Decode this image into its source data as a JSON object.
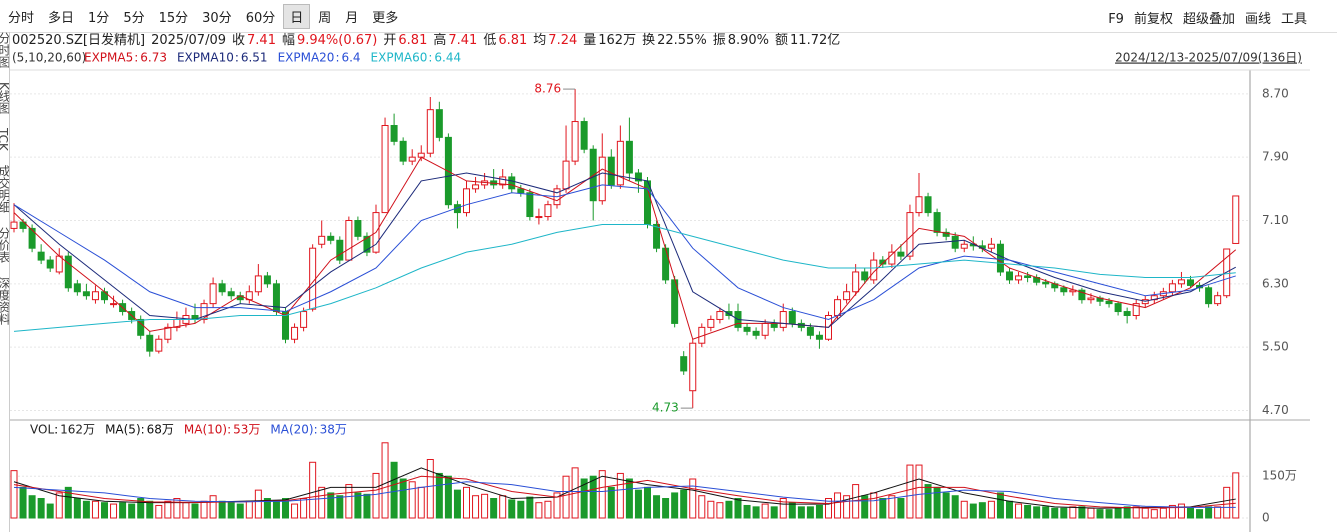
{
  "toolbar": {
    "tabs": [
      "分时",
      "多日",
      "1分",
      "5分",
      "15分",
      "30分",
      "60分",
      "日",
      "周",
      "月",
      "更多"
    ],
    "active_tab": "日",
    "right": [
      "F9",
      "前复权",
      "超级叠加",
      "画线",
      "工具"
    ]
  },
  "sidebar": [
    "分时图",
    "K线图",
    "TCK",
    "成交明细",
    "分价表",
    "深度资料"
  ],
  "info": {
    "code": "002520.SZ[日发精机]",
    "date": "2025/07/09",
    "items": [
      {
        "label": "收",
        "value": "7.41",
        "color": "#e0161e"
      },
      {
        "label": "幅",
        "value": "9.94%(0.67)",
        "color": "#e0161e"
      },
      {
        "label": "开",
        "value": "6.81",
        "color": "#e0161e"
      },
      {
        "label": "高",
        "value": "7.41",
        "color": "#e0161e"
      },
      {
        "label": "低",
        "value": "6.81",
        "color": "#e0161e"
      },
      {
        "label": "均",
        "value": "7.24",
        "color": "#e0161e"
      },
      {
        "label": "量",
        "value": "162万",
        "color": "#222222"
      },
      {
        "label": "换",
        "value": "22.55%",
        "color": "#222222"
      },
      {
        "label": "振",
        "value": "8.90%",
        "color": "#222222"
      },
      {
        "label": "额",
        "value": "11.72亿",
        "color": "#222222"
      }
    ]
  },
  "chart_data": {
    "type": "candlestick",
    "params": "(5,10,20,60)",
    "date_range": "2024/12/13-2025/07/09(136日)",
    "up_color": "#e0161e",
    "down_color": "#1a9a2b",
    "ylim": [
      4.58,
      8.9
    ],
    "yticks": [
      {
        "value": 8.7,
        "label": "8.70"
      },
      {
        "value": 7.9,
        "label": "7.90"
      },
      {
        "value": 7.1,
        "label": "7.10"
      },
      {
        "value": 6.3,
        "label": "6.30"
      },
      {
        "value": 5.5,
        "label": "5.50"
      },
      {
        "value": 4.7,
        "label": "4.70"
      }
    ],
    "grid": true,
    "ohlc": [
      [
        7.0,
        7.32,
        6.95,
        7.08
      ],
      [
        7.08,
        7.12,
        6.95,
        7.0
      ],
      [
        7.0,
        7.05,
        6.7,
        6.75
      ],
      [
        6.7,
        6.8,
        6.55,
        6.6
      ],
      [
        6.6,
        6.65,
        6.45,
        6.5
      ],
      [
        6.45,
        6.75,
        6.42,
        6.65
      ],
      [
        6.65,
        6.7,
        6.2,
        6.25
      ],
      [
        6.3,
        6.35,
        6.15,
        6.2
      ],
      [
        6.2,
        6.3,
        6.1,
        6.15
      ],
      [
        6.1,
        6.28,
        6.05,
        6.2
      ],
      [
        6.2,
        6.25,
        6.05,
        6.1
      ],
      [
        6.05,
        6.15,
        6.0,
        6.05
      ],
      [
        6.05,
        6.1,
        5.9,
        5.95
      ],
      [
        5.95,
        6.0,
        5.8,
        5.85
      ],
      [
        5.85,
        5.9,
        5.6,
        5.65
      ],
      [
        5.65,
        5.7,
        5.38,
        5.45
      ],
      [
        5.45,
        5.65,
        5.42,
        5.6
      ],
      [
        5.6,
        5.8,
        5.55,
        5.75
      ],
      [
        5.75,
        5.95,
        5.7,
        5.85
      ],
      [
        5.8,
        6.0,
        5.75,
        5.9
      ],
      [
        5.9,
        6.05,
        5.8,
        5.85
      ],
      [
        5.85,
        6.1,
        5.8,
        6.05
      ],
      [
        6.05,
        6.38,
        6.0,
        6.3
      ],
      [
        6.3,
        6.35,
        6.15,
        6.2
      ],
      [
        6.2,
        6.25,
        6.1,
        6.15
      ],
      [
        6.15,
        6.2,
        6.05,
        6.1
      ],
      [
        6.1,
        6.28,
        6.05,
        6.2
      ],
      [
        6.2,
        6.55,
        6.15,
        6.4
      ],
      [
        6.4,
        6.45,
        6.25,
        6.3
      ],
      [
        6.3,
        6.35,
        5.9,
        5.95
      ],
      [
        5.95,
        6.0,
        5.55,
        5.6
      ],
      [
        5.6,
        5.8,
        5.55,
        5.75
      ],
      [
        5.75,
        6.0,
        5.7,
        5.95
      ],
      [
        5.98,
        6.8,
        5.95,
        6.75
      ],
      [
        6.8,
        7.1,
        6.75,
        6.9
      ],
      [
        6.9,
        6.95,
        6.8,
        6.85
      ],
      [
        6.85,
        6.9,
        6.55,
        6.6
      ],
      [
        6.6,
        7.15,
        6.6,
        7.1
      ],
      [
        7.1,
        7.15,
        6.85,
        6.9
      ],
      [
        6.9,
        6.95,
        6.65,
        6.7
      ],
      [
        6.7,
        7.3,
        6.68,
        7.2
      ],
      [
        7.2,
        8.4,
        7.2,
        8.3
      ],
      [
        8.3,
        8.45,
        8.05,
        8.1
      ],
      [
        8.1,
        8.15,
        7.8,
        7.85
      ],
      [
        7.85,
        8.0,
        7.8,
        7.9
      ],
      [
        7.9,
        8.05,
        7.85,
        7.95
      ],
      [
        7.95,
        8.66,
        7.9,
        8.5
      ],
      [
        8.5,
        8.6,
        8.1,
        8.15
      ],
      [
        8.15,
        8.2,
        7.25,
        7.3
      ],
      [
        7.3,
        7.35,
        7.0,
        7.2
      ],
      [
        7.2,
        7.6,
        7.15,
        7.5
      ],
      [
        7.5,
        7.65,
        7.45,
        7.55
      ],
      [
        7.55,
        7.7,
        7.5,
        7.6
      ],
      [
        7.6,
        7.75,
        7.5,
        7.55
      ],
      [
        7.55,
        7.75,
        7.5,
        7.65
      ],
      [
        7.65,
        7.7,
        7.45,
        7.5
      ],
      [
        7.5,
        7.55,
        7.4,
        7.45
      ],
      [
        7.45,
        7.5,
        7.1,
        7.15
      ],
      [
        7.15,
        7.25,
        7.05,
        7.15
      ],
      [
        7.15,
        7.35,
        7.1,
        7.3
      ],
      [
        7.3,
        7.55,
        7.25,
        7.5
      ],
      [
        7.5,
        8.3,
        7.45,
        7.85
      ],
      [
        7.85,
        8.76,
        7.8,
        8.35
      ],
      [
        8.35,
        8.4,
        7.95,
        8.0
      ],
      [
        8.0,
        8.05,
        7.1,
        7.35
      ],
      [
        7.35,
        8.2,
        7.3,
        7.9
      ],
      [
        7.9,
        8.0,
        7.5,
        7.55
      ],
      [
        7.55,
        8.3,
        7.5,
        8.1
      ],
      [
        8.1,
        8.4,
        7.6,
        7.7
      ],
      [
        7.7,
        7.75,
        7.45,
        7.6
      ],
      [
        7.6,
        7.65,
        7.0,
        7.05
      ],
      [
        7.05,
        7.1,
        6.7,
        6.75
      ],
      [
        6.75,
        6.8,
        6.3,
        6.35
      ],
      [
        6.35,
        6.4,
        5.75,
        5.8
      ],
      [
        5.38,
        5.45,
        5.15,
        5.2
      ],
      [
        4.95,
        5.6,
        4.73,
        5.55
      ],
      [
        5.55,
        5.8,
        5.5,
        5.75
      ],
      [
        5.75,
        5.9,
        5.7,
        5.85
      ],
      [
        5.85,
        6.0,
        5.8,
        5.95
      ],
      [
        5.95,
        6.05,
        5.85,
        5.9
      ],
      [
        5.95,
        6.05,
        5.7,
        5.75
      ],
      [
        5.75,
        5.8,
        5.65,
        5.7
      ],
      [
        5.7,
        5.75,
        5.6,
        5.65
      ],
      [
        5.65,
        5.85,
        5.6,
        5.8
      ],
      [
        5.8,
        5.85,
        5.7,
        5.75
      ],
      [
        5.75,
        6.05,
        5.7,
        5.95
      ],
      [
        5.95,
        6.0,
        5.75,
        5.8
      ],
      [
        5.8,
        5.85,
        5.7,
        5.75
      ],
      [
        5.75,
        5.8,
        5.6,
        5.65
      ],
      [
        5.65,
        5.7,
        5.48,
        5.6
      ],
      [
        5.6,
        5.95,
        5.58,
        5.9
      ],
      [
        5.9,
        6.15,
        5.85,
        6.1
      ],
      [
        6.1,
        6.3,
        6.05,
        6.2
      ],
      [
        6.2,
        6.55,
        6.15,
        6.45
      ],
      [
        6.45,
        6.5,
        6.3,
        6.35
      ],
      [
        6.35,
        6.7,
        6.3,
        6.6
      ],
      [
        6.6,
        6.65,
        6.5,
        6.55
      ],
      [
        6.55,
        6.8,
        6.5,
        6.7
      ],
      [
        6.7,
        6.8,
        6.6,
        6.65
      ],
      [
        6.65,
        7.3,
        6.6,
        7.2
      ],
      [
        7.2,
        7.7,
        7.15,
        7.4
      ],
      [
        7.4,
        7.45,
        7.15,
        7.2
      ],
      [
        7.2,
        7.25,
        6.9,
        6.95
      ],
      [
        6.95,
        7.0,
        6.85,
        6.9
      ],
      [
        6.9,
        6.95,
        6.7,
        6.75
      ],
      [
        6.75,
        6.85,
        6.7,
        6.8
      ],
      [
        6.8,
        6.9,
        6.72,
        6.78
      ],
      [
        6.78,
        6.85,
        6.7,
        6.75
      ],
      [
        6.75,
        6.88,
        6.7,
        6.8
      ],
      [
        6.8,
        6.85,
        6.4,
        6.45
      ],
      [
        6.45,
        6.5,
        6.3,
        6.35
      ],
      [
        6.35,
        6.45,
        6.3,
        6.4
      ],
      [
        6.4,
        6.45,
        6.32,
        6.38
      ],
      [
        6.38,
        6.42,
        6.28,
        6.32
      ],
      [
        6.32,
        6.36,
        6.25,
        6.3
      ],
      [
        6.3,
        6.33,
        6.2,
        6.25
      ],
      [
        6.25,
        6.28,
        6.15,
        6.2
      ],
      [
        6.2,
        6.28,
        6.15,
        6.22
      ],
      [
        6.22,
        6.25,
        6.05,
        6.1
      ],
      [
        6.1,
        6.18,
        6.05,
        6.12
      ],
      [
        6.12,
        6.15,
        6.02,
        6.08
      ],
      [
        6.08,
        6.12,
        6.0,
        6.05
      ],
      [
        6.05,
        6.08,
        5.9,
        5.95
      ],
      [
        5.95,
        6.0,
        5.8,
        5.9
      ],
      [
        5.9,
        6.1,
        5.85,
        6.05
      ],
      [
        6.05,
        6.15,
        6.0,
        6.1
      ],
      [
        6.1,
        6.2,
        6.05,
        6.15
      ],
      [
        6.15,
        6.25,
        6.1,
        6.2
      ],
      [
        6.2,
        6.35,
        6.15,
        6.3
      ],
      [
        6.3,
        6.45,
        6.25,
        6.35
      ],
      [
        6.35,
        6.4,
        6.25,
        6.28
      ],
      [
        6.28,
        6.32,
        6.2,
        6.25
      ],
      [
        6.25,
        6.28,
        6.0,
        6.05
      ],
      [
        6.05,
        6.2,
        6.02,
        6.15
      ],
      [
        6.15,
        6.74,
        6.12,
        6.74
      ],
      [
        6.81,
        7.41,
        6.81,
        7.41
      ]
    ],
    "ema": [
      {
        "name": "EXPMA5",
        "color": "#d0101a",
        "x": [
          0,
          5,
          10,
          15,
          20,
          25,
          30,
          35,
          40,
          45,
          50,
          55,
          60,
          65,
          70,
          75,
          80,
          85,
          90,
          95,
          100,
          105,
          110,
          115,
          120,
          125,
          130,
          135
        ],
        "values": [
          7.2,
          6.65,
          6.2,
          5.7,
          5.8,
          6.15,
          5.9,
          6.6,
          6.95,
          7.9,
          7.6,
          7.55,
          7.35,
          7.75,
          7.5,
          5.6,
          5.8,
          5.8,
          5.75,
          6.45,
          7.0,
          6.9,
          6.5,
          6.3,
          6.12,
          6.0,
          6.25,
          6.73
        ]
      },
      {
        "name": "EXPMA10",
        "color": "#1c2a7a",
        "x": [
          0,
          5,
          10,
          15,
          20,
          25,
          30,
          35,
          40,
          45,
          50,
          55,
          60,
          65,
          70,
          75,
          80,
          85,
          90,
          95,
          100,
          105,
          110,
          115,
          120,
          125,
          130,
          135
        ],
        "values": [
          7.3,
          6.8,
          6.35,
          5.9,
          5.85,
          6.05,
          6.0,
          6.45,
          6.8,
          7.6,
          7.7,
          7.6,
          7.45,
          7.7,
          7.6,
          6.2,
          5.85,
          5.8,
          5.75,
          6.25,
          6.8,
          6.85,
          6.6,
          6.38,
          6.2,
          6.08,
          6.2,
          6.51
        ]
      },
      {
        "name": "EXPMA20",
        "color": "#2a4fd6",
        "x": [
          0,
          5,
          10,
          15,
          20,
          25,
          30,
          35,
          40,
          45,
          50,
          55,
          60,
          65,
          70,
          75,
          80,
          85,
          90,
          95,
          100,
          105,
          110,
          115,
          120,
          125,
          130,
          135
        ],
        "values": [
          7.3,
          6.95,
          6.6,
          6.2,
          6.0,
          6.0,
          5.95,
          6.2,
          6.5,
          7.1,
          7.3,
          7.45,
          7.4,
          7.55,
          7.5,
          6.75,
          6.25,
          6.0,
          5.85,
          6.1,
          6.5,
          6.65,
          6.6,
          6.45,
          6.3,
          6.15,
          6.22,
          6.4
        ]
      },
      {
        "name": "EXPMA60",
        "color": "#1eb6c8",
        "x": [
          0,
          5,
          10,
          15,
          20,
          25,
          30,
          35,
          40,
          45,
          50,
          55,
          60,
          65,
          70,
          75,
          80,
          85,
          90,
          95,
          100,
          105,
          110,
          115,
          120,
          125,
          130,
          135
        ],
        "values": [
          5.7,
          5.75,
          5.8,
          5.85,
          5.85,
          5.9,
          5.9,
          6.05,
          6.25,
          6.5,
          6.7,
          6.8,
          6.95,
          7.05,
          7.05,
          6.9,
          6.75,
          6.6,
          6.5,
          6.5,
          6.55,
          6.6,
          6.55,
          6.5,
          6.42,
          6.38,
          6.38,
          6.44
        ]
      }
    ],
    "volume_name": "VOL",
    "volume_unit": "万",
    "volume": [
      170,
      110,
      80,
      70,
      50,
      90,
      110,
      70,
      60,
      60,
      55,
      50,
      55,
      50,
      70,
      60,
      45,
      60,
      70,
      55,
      50,
      60,
      80,
      60,
      55,
      50,
      60,
      100,
      70,
      60,
      70,
      50,
      70,
      200,
      110,
      90,
      80,
      120,
      90,
      85,
      160,
      270,
      200,
      140,
      130,
      110,
      210,
      160,
      150,
      100,
      110,
      80,
      85,
      70,
      80,
      65,
      60,
      75,
      55,
      60,
      90,
      150,
      180,
      140,
      150,
      170,
      110,
      160,
      140,
      100,
      110,
      80,
      70,
      90,
      100,
      140,
      80,
      60,
      55,
      60,
      70,
      45,
      40,
      50,
      40,
      70,
      55,
      40,
      40,
      45,
      70,
      90,
      80,
      120,
      80,
      90,
      70,
      80,
      70,
      190,
      190,
      120,
      110,
      90,
      80,
      60,
      50,
      55,
      60,
      90,
      60,
      50,
      45,
      40,
      40,
      35,
      35,
      40,
      40,
      35,
      30,
      30,
      35,
      40,
      40,
      35,
      30,
      35,
      45,
      50,
      35,
      30,
      40,
      40,
      110,
      162
    ],
    "vlim": [
      0,
      280
    ],
    "vticks": [
      {
        "value": 150,
        "label": "150万"
      },
      0
    ],
    "vol_ma": [
      {
        "name": "MA(5)",
        "color": "#111111",
        "x": [
          0,
          5,
          10,
          15,
          20,
          25,
          30,
          35,
          40,
          45,
          50,
          55,
          60,
          65,
          70,
          75,
          80,
          85,
          90,
          95,
          100,
          105,
          110,
          115,
          120,
          125,
          130,
          135
        ],
        "values": [
          130,
          80,
          60,
          55,
          55,
          60,
          65,
          110,
          110,
          180,
          120,
          70,
          75,
          150,
          120,
          100,
          65,
          50,
          50,
          90,
          140,
          90,
          60,
          40,
          35,
          38,
          40,
          68
        ]
      },
      {
        "name": "MA(10)",
        "color": "#d0101a",
        "x": [
          0,
          5,
          10,
          15,
          20,
          25,
          30,
          35,
          40,
          45,
          50,
          55,
          60,
          65,
          70,
          75,
          80,
          85,
          90,
          95,
          100,
          105,
          110,
          115,
          120,
          125,
          130,
          135
        ],
        "values": [
          120,
          95,
          70,
          58,
          56,
          58,
          62,
          85,
          100,
          150,
          140,
          95,
          75,
          110,
          135,
          105,
          80,
          58,
          52,
          70,
          110,
          110,
          78,
          52,
          40,
          36,
          38,
          53
        ]
      },
      {
        "name": "MA(20)",
        "color": "#2a4fd6",
        "x": [
          0,
          5,
          10,
          15,
          20,
          25,
          30,
          35,
          40,
          45,
          50,
          55,
          60,
          65,
          70,
          75,
          80,
          85,
          90,
          95,
          100,
          105,
          110,
          115,
          120,
          125,
          130,
          135
        ],
        "values": [
          110,
          100,
          90,
          70,
          60,
          58,
          60,
          72,
          85,
          110,
          130,
          120,
          95,
          95,
          110,
          115,
          95,
          75,
          60,
          62,
          85,
          100,
          95,
          70,
          55,
          42,
          38,
          38
        ]
      }
    ]
  }
}
